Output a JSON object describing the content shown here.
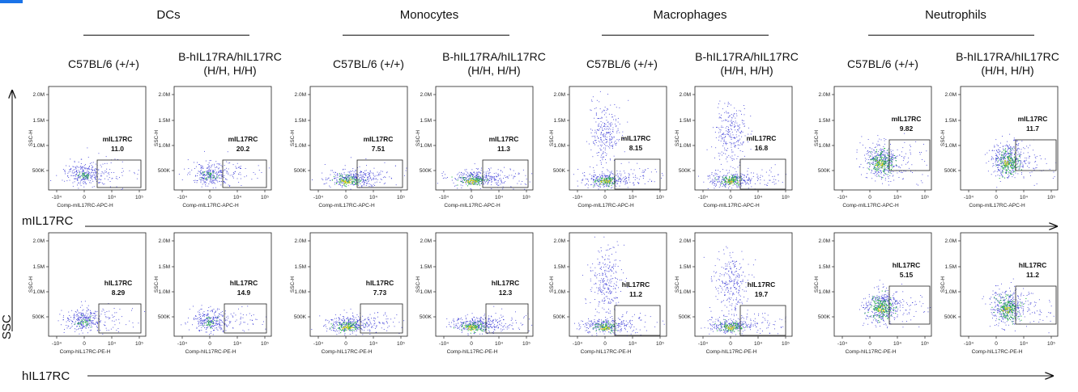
{
  "groups": [
    {
      "name": "DCs",
      "center": "dcs"
    },
    {
      "name": "Monocytes",
      "center": "mono"
    },
    {
      "name": "Macrophages",
      "center": "macro"
    },
    {
      "name": "Neutrophils",
      "center": "neut"
    }
  ],
  "strains": {
    "wt": "C57BL/6 (+/+)",
    "hum_line1": "B-hIL17RA/hIL17RC",
    "hum_line2": "(H/H, H/H)"
  },
  "axes": {
    "row1_x_name": "mIL17RC",
    "row2_x_name": "hIL17RC",
    "y_name": "SSC",
    "ylabel": "SSC-H",
    "xlabel_m": "Comp-mIL17RC-APC-H",
    "xlabel_h": "Comp-hIL17RC-PE-H",
    "yticks": [
      "2.0M",
      "1.5M",
      "1.0M",
      "500K"
    ],
    "xticks": [
      "-10⁴",
      "0",
      "10⁴",
      "10⁵"
    ]
  },
  "chart_data": {
    "type": "scatter",
    "description_units": "percent of cells in gate",
    "rows": [
      {
        "marker": "mIL17RC",
        "xlabel": "Comp-mIL17RC-APC-H",
        "ylabel": "SSC-H",
        "panels": [
          {
            "group": "DCs",
            "strain": "C57BL/6 (+/+)",
            "gate": "mIL17RC",
            "value": "11.0"
          },
          {
            "group": "DCs",
            "strain": "B-hIL17RA/hIL17RC (H/H, H/H)",
            "gate": "mIL17RC",
            "value": "20.2"
          },
          {
            "group": "Monocytes",
            "strain": "C57BL/6 (+/+)",
            "gate": "mIL17RC",
            "value": "7.51"
          },
          {
            "group": "Monocytes",
            "strain": "B-hIL17RA/hIL17RC (H/H, H/H)",
            "gate": "mIL17RC",
            "value": "11.3"
          },
          {
            "group": "Macrophages",
            "strain": "C57BL/6 (+/+)",
            "gate": "mIL17RC",
            "value": "8.15"
          },
          {
            "group": "Macrophages",
            "strain": "B-hIL17RA/hIL17RC (H/H, H/H)",
            "gate": "mIL17RC",
            "value": "16.8"
          },
          {
            "group": "Neutrophils",
            "strain": "C57BL/6 (+/+)",
            "gate": "mIL17RC",
            "value": "9.82"
          },
          {
            "group": "Neutrophils",
            "strain": "B-hIL17RA/hIL17RC (H/H, H/H)",
            "gate": "mIL17RC",
            "value": "11.7"
          }
        ]
      },
      {
        "marker": "hIL17RC",
        "xlabel": "Comp-hIL17RC-PE-H",
        "ylabel": "SSC-H",
        "panels": [
          {
            "group": "DCs",
            "strain": "C57BL/6 (+/+)",
            "gate": "hIL17RC",
            "value": "8.29"
          },
          {
            "group": "DCs",
            "strain": "B-hIL17RA/hIL17RC (H/H, H/H)",
            "gate": "hIL17RC",
            "value": "14.9"
          },
          {
            "group": "Monocytes",
            "strain": "C57BL/6 (+/+)",
            "gate": "hIL17RC",
            "value": "7.73"
          },
          {
            "group": "Monocytes",
            "strain": "B-hIL17RA/hIL17RC (H/H, H/H)",
            "gate": "hIL17RC",
            "value": "12.3"
          },
          {
            "group": "Macrophages",
            "strain": "C57BL/6 (+/+)",
            "gate": "hIL17RC",
            "value": "11.2"
          },
          {
            "group": "Macrophages",
            "strain": "B-hIL17RA/hIL17RC (H/H, H/H)",
            "gate": "hIL17RC",
            "value": "19.7"
          },
          {
            "group": "Neutrophils",
            "strain": "C57BL/6 (+/+)",
            "gate": "hIL17RC",
            "value": "5.15"
          },
          {
            "group": "Neutrophils",
            "strain": "B-hIL17RA/hIL17RC (H/H, H/H)",
            "gate": "hIL17RC",
            "value": "11.2"
          }
        ]
      }
    ],
    "y_axis": {
      "label": "SSC-H",
      "ticks": [
        "500K",
        "1.0M",
        "1.5M",
        "2.0M"
      ]
    },
    "x_axis": {
      "ticks": [
        "-10⁴",
        "0",
        "10⁴",
        "10⁵"
      ]
    },
    "colors": {
      "dots": "#3b3bd6",
      "dense": "#2bb34a",
      "core": "#e6d21a"
    }
  }
}
